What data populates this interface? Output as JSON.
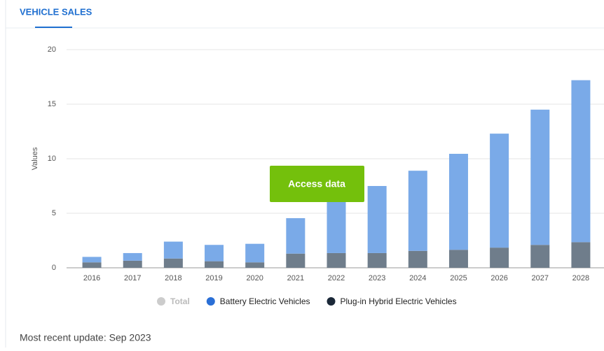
{
  "tab": "VEHICLE SALES",
  "button": "Access data",
  "footer": "Most recent update: Sep 2023",
  "chart_data": {
    "type": "stacked_bar",
    "y_label": "Values",
    "categories": [
      "2016",
      "2017",
      "2018",
      "2019",
      "2020",
      "2021",
      "2022",
      "2023",
      "2024",
      "2025",
      "2026",
      "2027",
      "2028"
    ],
    "ylim": [
      0,
      20
    ],
    "yticks": [
      0,
      5,
      10,
      15,
      20
    ],
    "grid": true,
    "legend_inactive": {
      "name": "Total",
      "color": "#cccccc"
    },
    "series": [
      {
        "name": "Plug-in Hybrid Electric Vehicles",
        "color": "#6f7d8b",
        "legend_color": "#1b2838",
        "values": [
          0.5,
          0.65,
          0.85,
          0.6,
          0.5,
          1.3,
          1.35,
          1.35,
          1.55,
          1.65,
          1.85,
          2.1,
          2.35
        ]
      },
      {
        "name": "Battery Electric Vehicles",
        "color": "#7aaae8",
        "legend_color": "#2a6fd6",
        "values": [
          0.5,
          0.7,
          1.55,
          1.5,
          1.7,
          3.25,
          4.95,
          6.15,
          7.35,
          8.8,
          10.45,
          12.4,
          14.85
        ]
      }
    ]
  }
}
